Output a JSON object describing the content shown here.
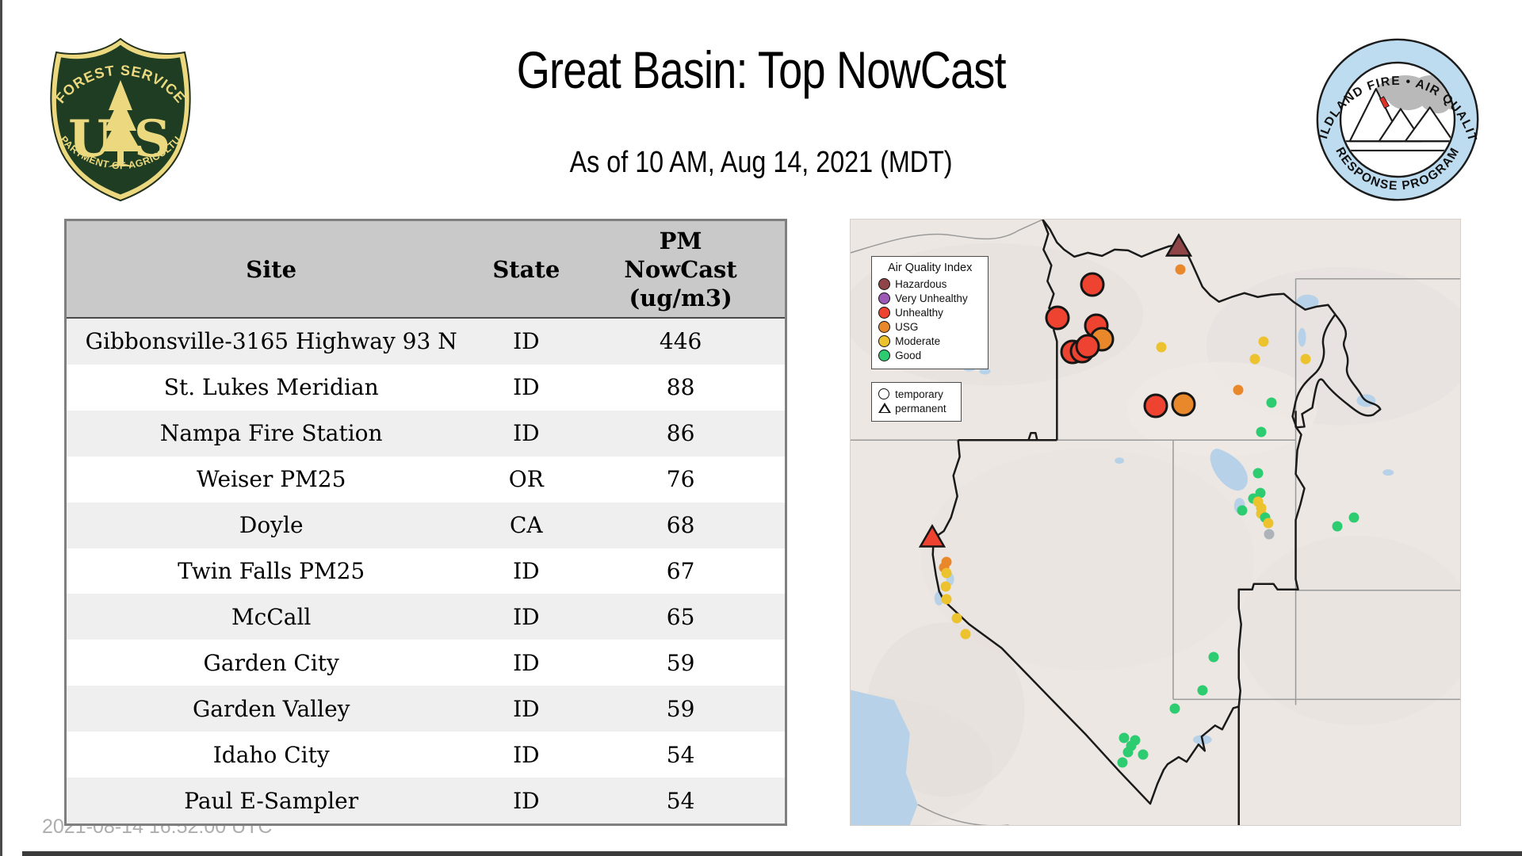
{
  "header": {
    "title": "Great Basin: Top NowCast",
    "subtitle": "As of 10 AM, Aug 14, 2021 (MDT)"
  },
  "usfs_logo": {
    "arc_top": "FOREST SERVICE",
    "letter_left": "U",
    "letter_right": "S",
    "arc_bottom": "DEPARTMENT OF AGRICULTURE"
  },
  "wfaqrp_logo": {
    "arc_top": "WILDLAND FIRE • AIR QUALITY",
    "arc_bottom": "RESPONSE PROGRAM"
  },
  "footer": {
    "timestamp": "2021-08-14 16:52:00 UTC"
  },
  "table": {
    "columns": [
      "Site",
      "State",
      "PM NowCast (ug/m3)"
    ],
    "rows": [
      {
        "site": "Gibbonsville-3165 Highway 93 N",
        "state": "ID",
        "value": "446"
      },
      {
        "site": "St. Lukes Meridian",
        "state": "ID",
        "value": "88"
      },
      {
        "site": "Nampa Fire Station",
        "state": "ID",
        "value": "86"
      },
      {
        "site": "Weiser PM25",
        "state": "OR",
        "value": "76"
      },
      {
        "site": "Doyle",
        "state": "CA",
        "value": "68"
      },
      {
        "site": "Twin Falls PM25",
        "state": "ID",
        "value": "67"
      },
      {
        "site": "McCall",
        "state": "ID",
        "value": "65"
      },
      {
        "site": "Garden City",
        "state": "ID",
        "value": "59"
      },
      {
        "site": "Garden Valley",
        "state": "ID",
        "value": "59"
      },
      {
        "site": "Idaho City",
        "state": "ID",
        "value": "54"
      },
      {
        "site": "Paul E-Sampler",
        "state": "ID",
        "value": "54"
      }
    ]
  },
  "map": {
    "aqi_colors": {
      "hazardous": "#8f4548",
      "very_unhealthy": "#9c59b8",
      "unhealthy": "#ed4330",
      "usg": "#e8882b",
      "moderate": "#ecc22e",
      "good": "#2dcc70",
      "nodata": "#adb3b8"
    },
    "legend_aqi": {
      "title": "Air Quality Index",
      "items": [
        {
          "label": "Hazardous",
          "color_key": "hazardous"
        },
        {
          "label": "Very Unhealthy",
          "color_key": "very_unhealthy"
        },
        {
          "label": "Unhealthy",
          "color_key": "unhealthy"
        },
        {
          "label": "USG",
          "color_key": "usg"
        },
        {
          "label": "Moderate",
          "color_key": "moderate"
        },
        {
          "label": "Good",
          "color_key": "good"
        }
      ]
    },
    "legend_shape": {
      "items": [
        {
          "label": "temporary",
          "shape": "circle"
        },
        {
          "label": "permanent",
          "shape": "triangle"
        }
      ]
    },
    "markers": [
      {
        "shape": "triangle",
        "size": "large",
        "color_key": "hazardous",
        "x": 53.8,
        "y": 4.6
      },
      {
        "shape": "triangle",
        "size": "large",
        "color_key": "unhealthy",
        "x": 13.4,
        "y": 52.6
      },
      {
        "shape": "circle",
        "size": "large",
        "color_key": "unhealthy",
        "x": 39.6,
        "y": 10.7
      },
      {
        "shape": "circle",
        "size": "large",
        "color_key": "unhealthy",
        "x": 34.0,
        "y": 16.2
      },
      {
        "shape": "circle",
        "size": "large",
        "color_key": "unhealthy",
        "x": 40.3,
        "y": 17.5
      },
      {
        "shape": "circle",
        "size": "large",
        "color_key": "usg",
        "x": 41.2,
        "y": 19.8
      },
      {
        "shape": "circle",
        "size": "large",
        "color_key": "unhealthy",
        "x": 36.4,
        "y": 21.8
      },
      {
        "shape": "circle",
        "size": "large",
        "color_key": "unhealthy",
        "x": 38.0,
        "y": 21.7
      },
      {
        "shape": "circle",
        "size": "large",
        "color_key": "unhealthy",
        "x": 38.9,
        "y": 21.0
      },
      {
        "shape": "circle",
        "size": "large",
        "color_key": "unhealthy",
        "x": 50.1,
        "y": 30.8
      },
      {
        "shape": "circle",
        "size": "large",
        "color_key": "usg",
        "x": 54.6,
        "y": 30.5
      },
      {
        "shape": "circle",
        "size": "small",
        "color_key": "usg",
        "x": 54.1,
        "y": 8.2
      },
      {
        "shape": "circle",
        "size": "small",
        "color_key": "moderate",
        "x": 51.0,
        "y": 21.1
      },
      {
        "shape": "circle",
        "size": "small",
        "color_key": "moderate",
        "x": 67.8,
        "y": 20.1
      },
      {
        "shape": "circle",
        "size": "small",
        "color_key": "moderate",
        "x": 66.3,
        "y": 23.0
      },
      {
        "shape": "circle",
        "size": "small",
        "color_key": "moderate",
        "x": 74.6,
        "y": 23.1
      },
      {
        "shape": "circle",
        "size": "small",
        "color_key": "usg",
        "x": 63.6,
        "y": 28.2
      },
      {
        "shape": "circle",
        "size": "small",
        "color_key": "good",
        "x": 69.0,
        "y": 30.2
      },
      {
        "shape": "circle",
        "size": "small",
        "color_key": "good",
        "x": 67.4,
        "y": 35.1
      },
      {
        "shape": "circle",
        "size": "small",
        "color_key": "good",
        "x": 66.8,
        "y": 41.9
      },
      {
        "shape": "circle",
        "size": "small",
        "color_key": "good",
        "x": 67.2,
        "y": 45.2
      },
      {
        "shape": "circle",
        "size": "small",
        "color_key": "good",
        "x": 66.0,
        "y": 46.1
      },
      {
        "shape": "circle",
        "size": "small",
        "color_key": "moderate",
        "x": 66.9,
        "y": 46.6
      },
      {
        "shape": "circle",
        "size": "small",
        "color_key": "moderate",
        "x": 67.3,
        "y": 47.7
      },
      {
        "shape": "circle",
        "size": "small",
        "color_key": "moderate",
        "x": 67.4,
        "y": 48.6
      },
      {
        "shape": "circle",
        "size": "small",
        "color_key": "good",
        "x": 64.3,
        "y": 48.0
      },
      {
        "shape": "circle",
        "size": "small",
        "color_key": "good",
        "x": 68.0,
        "y": 49.2
      },
      {
        "shape": "circle",
        "size": "small",
        "color_key": "moderate",
        "x": 68.5,
        "y": 50.1
      },
      {
        "shape": "circle",
        "size": "small",
        "color_key": "nodata",
        "x": 68.7,
        "y": 52.0
      },
      {
        "shape": "circle",
        "size": "small",
        "color_key": "good",
        "x": 79.8,
        "y": 50.7
      },
      {
        "shape": "circle",
        "size": "small",
        "color_key": "good",
        "x": 82.6,
        "y": 49.2
      },
      {
        "shape": "circle",
        "size": "small",
        "color_key": "good",
        "x": 59.5,
        "y": 72.2
      },
      {
        "shape": "circle",
        "size": "small",
        "color_key": "good",
        "x": 57.8,
        "y": 77.8
      },
      {
        "shape": "circle",
        "size": "small",
        "color_key": "good",
        "x": 53.2,
        "y": 80.8
      },
      {
        "shape": "circle",
        "size": "small",
        "color_key": "good",
        "x": 44.9,
        "y": 85.6
      },
      {
        "shape": "circle",
        "size": "small",
        "color_key": "good",
        "x": 46.0,
        "y": 86.9
      },
      {
        "shape": "circle",
        "size": "small",
        "color_key": "good",
        "x": 46.7,
        "y": 86.0
      },
      {
        "shape": "circle",
        "size": "small",
        "color_key": "good",
        "x": 45.5,
        "y": 88.0
      },
      {
        "shape": "circle",
        "size": "small",
        "color_key": "good",
        "x": 48.0,
        "y": 88.3
      },
      {
        "shape": "circle",
        "size": "small",
        "color_key": "good",
        "x": 44.6,
        "y": 89.7
      },
      {
        "shape": "circle",
        "size": "small",
        "color_key": "usg",
        "x": 15.7,
        "y": 56.5
      },
      {
        "shape": "circle",
        "size": "small",
        "color_key": "usg",
        "x": 15.4,
        "y": 57.4
      },
      {
        "shape": "circle",
        "size": "small",
        "color_key": "moderate",
        "x": 15.7,
        "y": 58.4
      },
      {
        "shape": "circle",
        "size": "small",
        "color_key": "moderate",
        "x": 15.6,
        "y": 60.6
      },
      {
        "shape": "circle",
        "size": "small",
        "color_key": "moderate",
        "x": 15.7,
        "y": 62.7
      },
      {
        "shape": "circle",
        "size": "small",
        "color_key": "moderate",
        "x": 17.4,
        "y": 65.8
      },
      {
        "shape": "circle",
        "size": "small",
        "color_key": "moderate",
        "x": 18.9,
        "y": 68.4
      }
    ]
  }
}
